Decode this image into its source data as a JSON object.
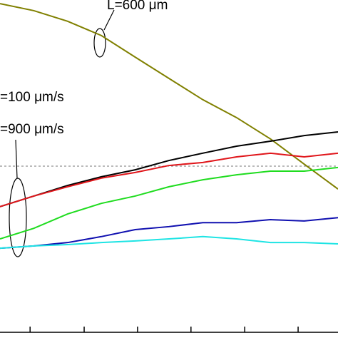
{
  "chart_data": {
    "type": "line",
    "x": [
      0,
      10,
      20,
      30,
      40,
      50,
      60,
      70,
      80,
      90,
      100
    ],
    "xlim": [
      0,
      100
    ],
    "ylim": [
      0,
      100
    ],
    "xticks": [
      8.9,
      24.9,
      40.7,
      56.5,
      72.4,
      88.2
    ],
    "reference_line": 50,
    "annotations": [
      "L=600 μm",
      "=100 μm/s",
      "=900 μm/s"
    ],
    "series": [
      {
        "color": "#808000",
        "values": [
          98.9,
          96.8,
          93.6,
          89.3,
          82.8,
          76.4,
          70.0,
          64.6,
          58.2,
          50.6,
          43.1
        ]
      },
      {
        "color": "#000000",
        "values": [
          37.8,
          41.0,
          44.2,
          46.8,
          48.9,
          51.7,
          53.9,
          56.0,
          57.5,
          59.2,
          60.3
        ]
      },
      {
        "color": "#e0161b",
        "values": [
          37.8,
          41.0,
          43.8,
          46.4,
          48.1,
          50.2,
          51.1,
          52.8,
          53.9,
          52.8,
          53.9
        ]
      },
      {
        "color": "#1fdc1f",
        "values": [
          28.1,
          31.3,
          35.6,
          38.8,
          41.0,
          43.8,
          45.9,
          47.4,
          48.5,
          48.5,
          49.6
        ]
      },
      {
        "color": "#1010b0",
        "values": [
          25.3,
          26.0,
          27.0,
          28.8,
          30.9,
          31.8,
          33.0,
          33.0,
          33.9,
          33.5,
          34.5
        ]
      },
      {
        "color": "#1ee4e4",
        "values": [
          25.3,
          26.0,
          26.4,
          27.0,
          27.5,
          28.1,
          28.8,
          28.1,
          27.0,
          27.0,
          26.6
        ]
      }
    ]
  }
}
